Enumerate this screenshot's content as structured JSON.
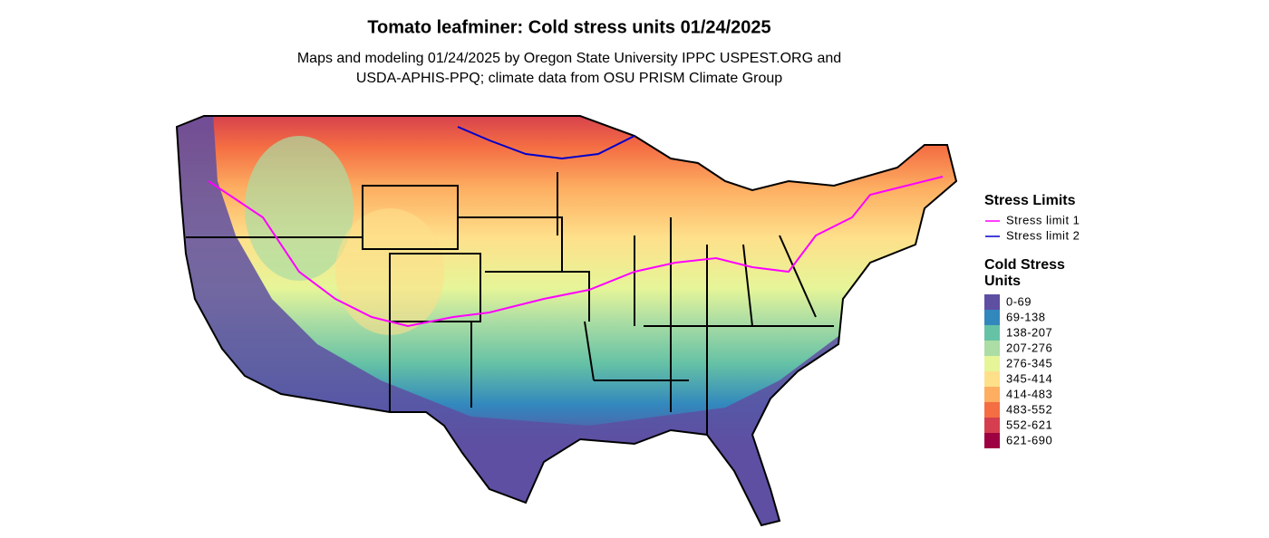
{
  "header": {
    "title": "Tomato leafminer: Cold stress units 01/24/2025",
    "subtitle": [
      "Maps and modeling 01/24/2025 by Oregon State University IPPC USPEST.ORG and",
      "USDA-APHIS-PPQ; climate data from OSU PRISM Climate Group"
    ]
  },
  "legend": {
    "limits": {
      "title": "Stress Limits",
      "items": [
        {
          "label": "Stress limit 1",
          "color": "#ff00ff"
        },
        {
          "label": "Stress limit 2",
          "color": "#0000cc"
        }
      ]
    },
    "units": {
      "title": [
        "Cold Stress",
        "Units"
      ],
      "items": [
        {
          "label": "0-69",
          "color": "#5e4fa2"
        },
        {
          "label": "69-138",
          "color": "#3288bd"
        },
        {
          "label": "138-207",
          "color": "#66c2a5"
        },
        {
          "label": "207-276",
          "color": "#abdda4"
        },
        {
          "label": "276-345",
          "color": "#e6f598"
        },
        {
          "label": "345-414",
          "color": "#fee08b"
        },
        {
          "label": "414-483",
          "color": "#fdae61"
        },
        {
          "label": "483-552",
          "color": "#f46d43"
        },
        {
          "label": "552-621",
          "color": "#d53e4f"
        },
        {
          "label": "621-690",
          "color": "#9e0142"
        }
      ]
    }
  }
}
